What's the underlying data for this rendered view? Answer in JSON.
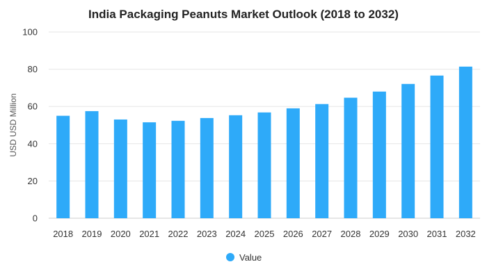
{
  "chart_data": {
    "type": "bar",
    "title": "India Packaging Peanuts Market Outlook (2018 to 2032)",
    "xlabel": "",
    "ylabel": "USD USD Million",
    "categories": [
      "2018",
      "2019",
      "2020",
      "2021",
      "2022",
      "2023",
      "2024",
      "2025",
      "2026",
      "2027",
      "2028",
      "2029",
      "2030",
      "2031",
      "2032"
    ],
    "series": [
      {
        "name": "Value",
        "color": "#2eaaf9",
        "values": [
          55.0,
          57.5,
          53.0,
          51.5,
          52.3,
          53.8,
          55.3,
          56.8,
          59.0,
          61.3,
          64.7,
          68.0,
          72.1,
          76.6,
          81.4
        ]
      }
    ],
    "ylim": [
      0,
      100
    ],
    "yticks": [
      0,
      20,
      40,
      60,
      80,
      100
    ],
    "grid": true,
    "legend": "bottom-center"
  },
  "colors": {
    "bar": "#2eaaf9",
    "grid": "#e6e6e6"
  }
}
